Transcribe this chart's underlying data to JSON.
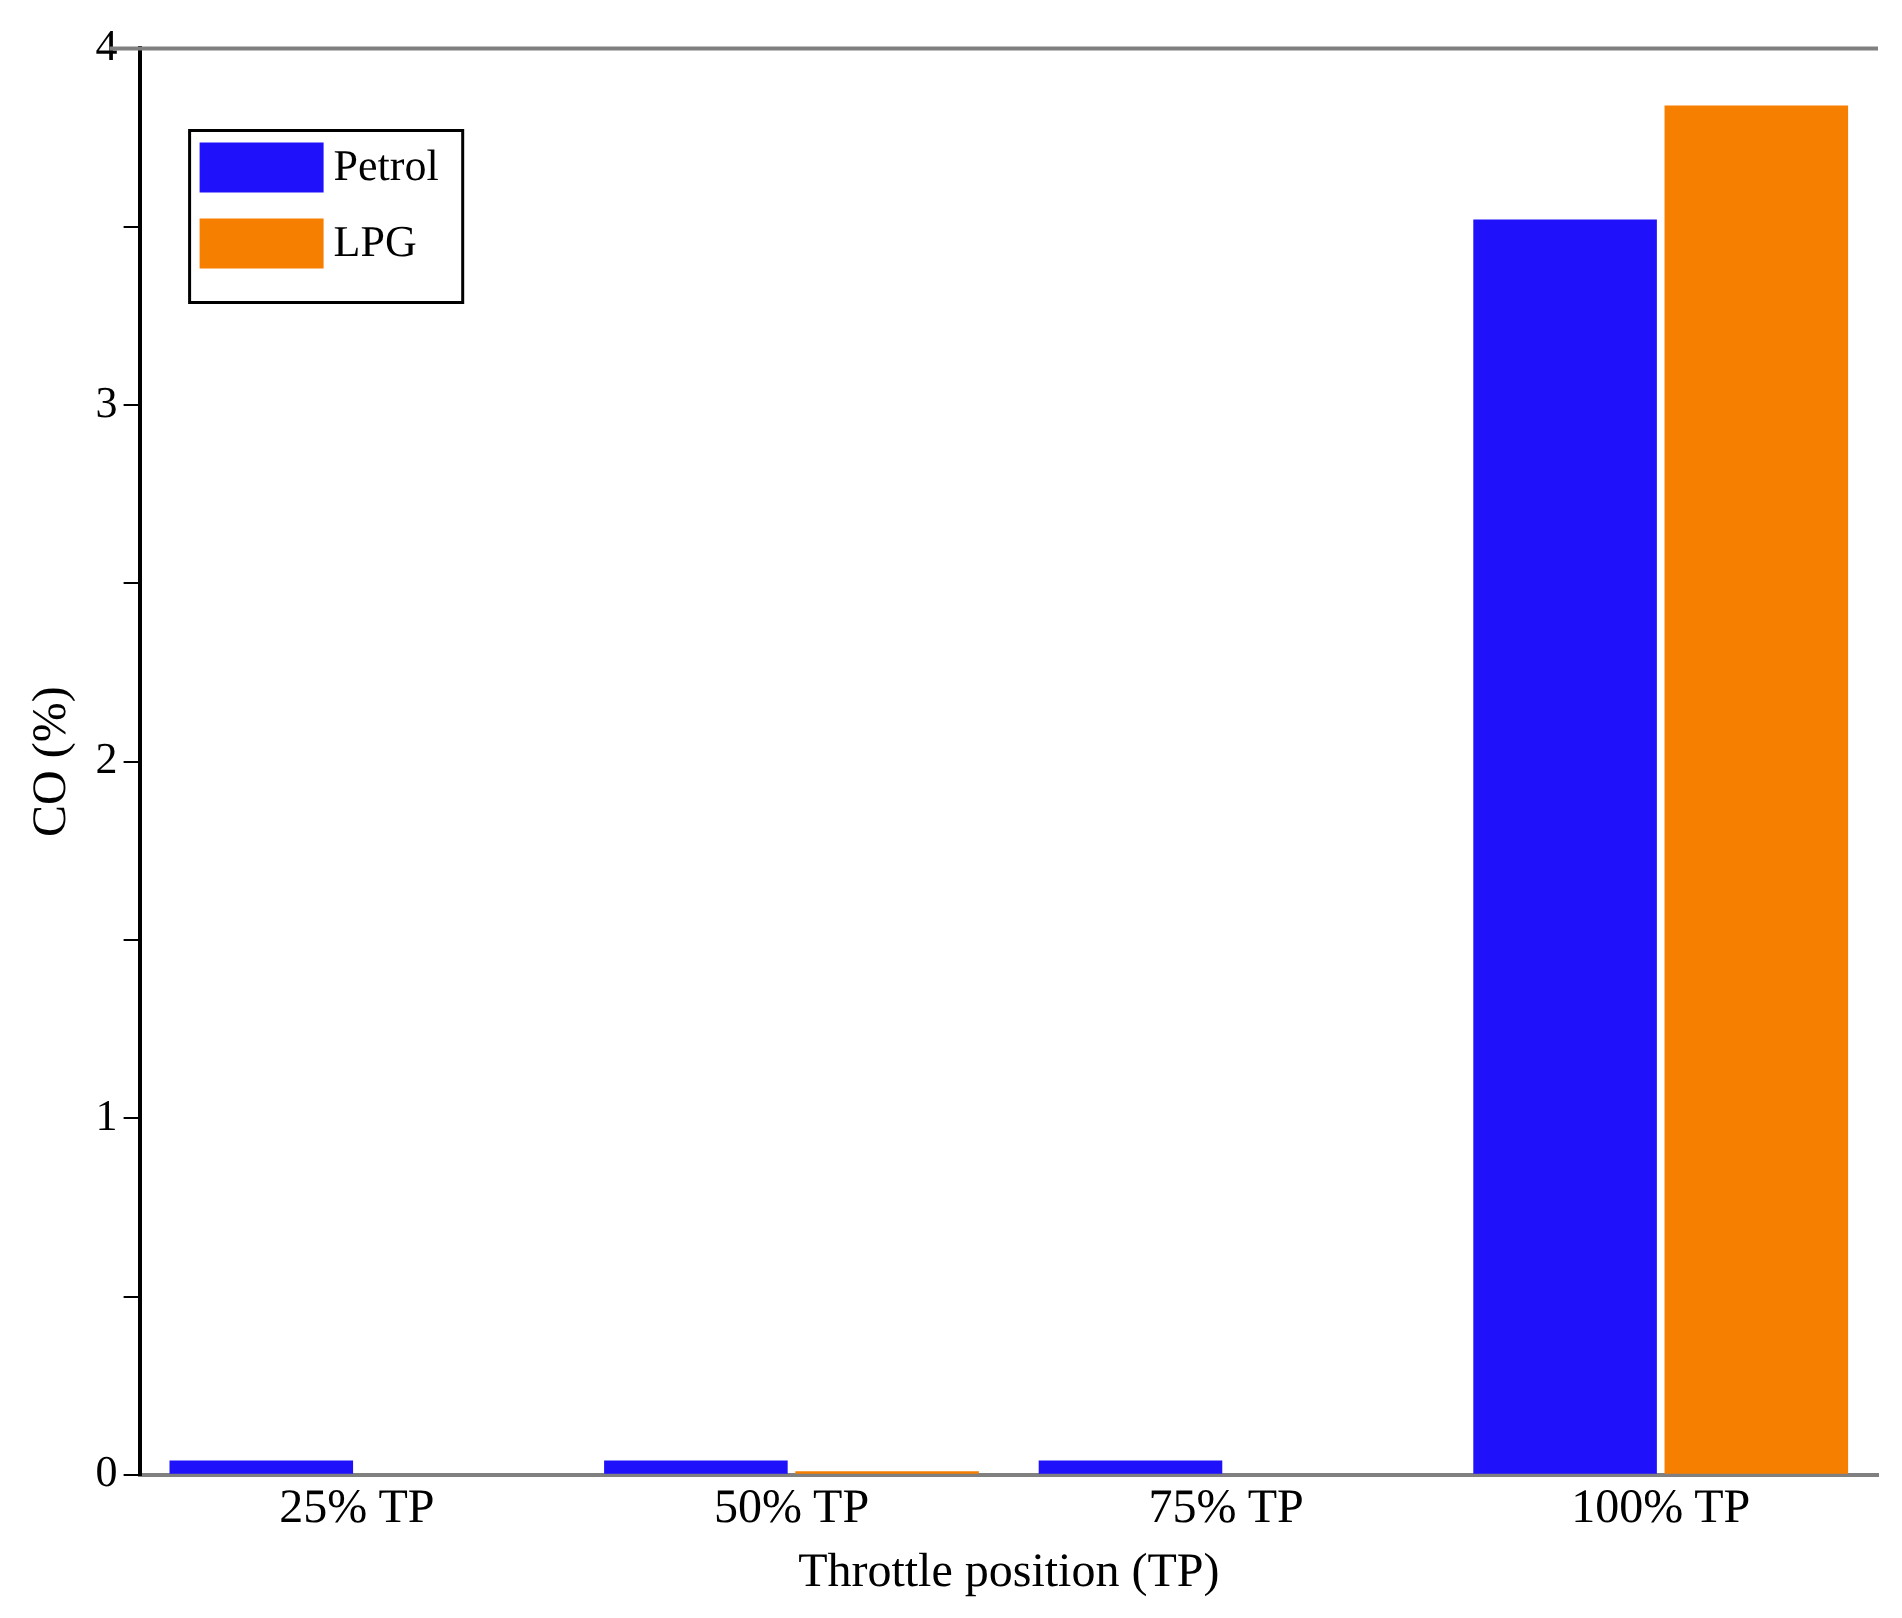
{
  "chart_data": {
    "type": "bar",
    "xlabel": "Throttle position (TP)",
    "ylabel": "CO (%)",
    "categories": [
      "25% TP",
      "50% TP",
      "75% TP",
      "100% TP"
    ],
    "series": [
      {
        "name": "Petrol",
        "color": "#1f12fb",
        "values": [
          0.04,
          0.04,
          0.04,
          3.52
        ]
      },
      {
        "name": "LPG",
        "color": "#f77f00",
        "values": [
          0,
          0.01,
          0,
          3.84
        ]
      }
    ],
    "ylim": [
      0,
      4
    ],
    "yticks": [
      0,
      {
        "value": 0.5,
        "label": null
      },
      1,
      {
        "value": 1.5,
        "label": null
      },
      2,
      {
        "value": 2.5,
        "label": null
      },
      3,
      {
        "value": 3.5,
        "label": null
      },
      4
    ],
    "grid": false,
    "legend": "top left"
  }
}
